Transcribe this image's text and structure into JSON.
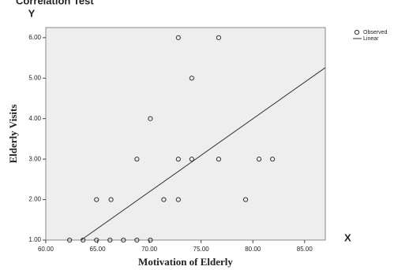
{
  "chart_data": {
    "type": "scatter",
    "title": "Correlation Test",
    "y_corner_label": "Y",
    "x_corner_label": "X",
    "x_label": "Motivation of Elderly",
    "y_label": "Elderly Visits",
    "xlim": [
      60,
      87
    ],
    "ylim": [
      1,
      6.25
    ],
    "xticks": [
      {
        "value": 60,
        "label": "60.00"
      },
      {
        "value": 65,
        "label": "65.00"
      },
      {
        "value": 70,
        "label": "70.00"
      },
      {
        "value": 75,
        "label": "75.00"
      },
      {
        "value": 80,
        "label": "80.00"
      },
      {
        "value": 85,
        "label": "85.00"
      }
    ],
    "yticks": [
      {
        "value": 1,
        "label": "1.00"
      },
      {
        "value": 2,
        "label": "2.00"
      },
      {
        "value": 3,
        "label": "3.00"
      },
      {
        "value": 4,
        "label": "4.00"
      },
      {
        "value": 5,
        "label": "5.00"
      },
      {
        "value": 6,
        "label": "6.00"
      }
    ],
    "series": [
      {
        "name": "Observed",
        "color": "#333333",
        "x": [
          62.3,
          63.6,
          64.9,
          66.2,
          67.5,
          68.8,
          70.1,
          64.9,
          66.3,
          71.4,
          72.8,
          79.3,
          68.8,
          72.8,
          74.1,
          76.7,
          80.6,
          81.9,
          70.1,
          74.1,
          72.8,
          76.7
        ],
        "values": [
          1,
          1,
          1,
          1,
          1,
          1,
          1,
          2,
          2,
          2,
          2,
          2,
          3,
          3,
          3,
          3,
          3,
          3,
          4,
          5,
          6,
          6
        ]
      },
      {
        "name": "Linear",
        "color": "#333333",
        "x": [
          63.4,
          87
        ],
        "values": [
          1,
          5.26
        ]
      }
    ]
  }
}
